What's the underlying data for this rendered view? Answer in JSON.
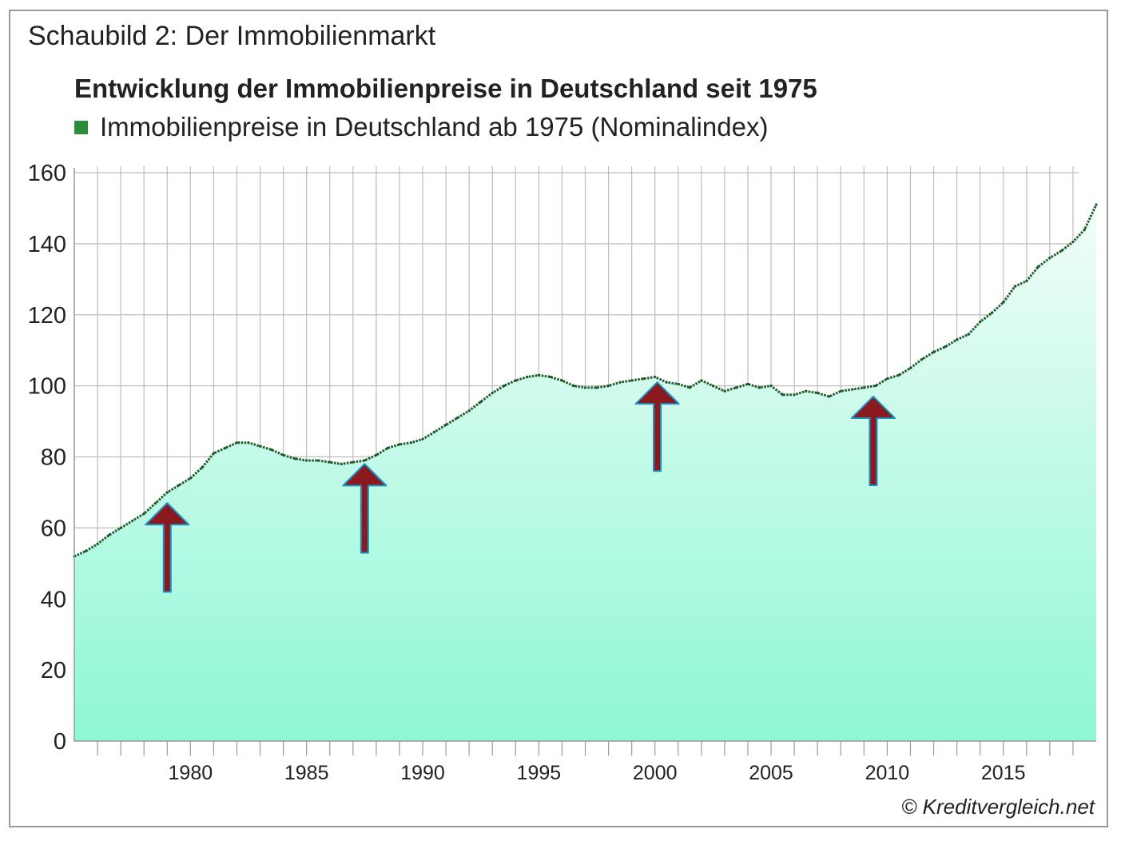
{
  "caption": "Schaubild 2: Der Immobilienmarkt",
  "credit": "© Kreditvergleich.net",
  "colors": {
    "line": "#1f5a2a",
    "legend_swatch": "#2e8b3a",
    "area_top": "#f2fdf8",
    "area_bottom": "#8ef7d6",
    "arrow_fill": "#8b1a1e",
    "arrow_stroke": "#1c8fc0",
    "grid": "#bdbdbd"
  },
  "chart_data": {
    "type": "area",
    "title": "Entwicklung der Immobilienpreise in Deutschland seit 1975",
    "xlabel": "",
    "ylabel": "",
    "ylim": [
      0,
      160
    ],
    "xlim": [
      1975.0,
      2019.0
    ],
    "grid": true,
    "legend_position": "top-left",
    "y_ticks": [
      0,
      20,
      40,
      60,
      80,
      100,
      120,
      140,
      160
    ],
    "x_ticks": [
      1980,
      1985,
      1990,
      1995,
      2000,
      2005,
      2010,
      2015
    ],
    "series": [
      {
        "name": "Immobilienpreise in Deutschland ab 1975 (Nominalindex)",
        "x": [
          1975.0,
          1975.5,
          1976.0,
          1976.5,
          1977.0,
          1977.5,
          1978.0,
          1978.5,
          1979.0,
          1979.5,
          1980.0,
          1980.5,
          1981.0,
          1981.5,
          1982.0,
          1982.5,
          1983.0,
          1983.5,
          1984.0,
          1984.5,
          1985.0,
          1985.5,
          1986.0,
          1986.5,
          1987.0,
          1987.5,
          1988.0,
          1988.5,
          1989.0,
          1989.5,
          1990.0,
          1990.5,
          1991.0,
          1991.5,
          1992.0,
          1992.5,
          1993.0,
          1993.5,
          1994.0,
          1994.5,
          1995.0,
          1995.5,
          1996.0,
          1996.5,
          1997.0,
          1997.5,
          1998.0,
          1998.5,
          1999.0,
          1999.5,
          2000.0,
          2000.5,
          2001.0,
          2001.5,
          2002.0,
          2002.5,
          2003.0,
          2003.5,
          2004.0,
          2004.5,
          2005.0,
          2005.5,
          2006.0,
          2006.5,
          2007.0,
          2007.5,
          2008.0,
          2008.5,
          2009.0,
          2009.5,
          2010.0,
          2010.5,
          2011.0,
          2011.5,
          2012.0,
          2012.5,
          2013.0,
          2013.5,
          2014.0,
          2014.5,
          2015.0,
          2015.5,
          2016.0,
          2016.5,
          2017.0,
          2017.5,
          2018.0,
          2018.5,
          2019.0
        ],
        "values": [
          52,
          53.5,
          55.5,
          58,
          60,
          62,
          64,
          67,
          70,
          72,
          74,
          77,
          81,
          82.5,
          84,
          84,
          83,
          82,
          80.5,
          79.5,
          79,
          79,
          78.5,
          78,
          78.5,
          79,
          80.5,
          82.5,
          83.5,
          84,
          85,
          87,
          89,
          91,
          93,
          95.5,
          98,
          100,
          101.5,
          102.5,
          103,
          102.5,
          101.5,
          100,
          99.5,
          99.5,
          100,
          101,
          101.5,
          102,
          102.5,
          101,
          100.5,
          99.5,
          101.5,
          100,
          98.5,
          99.5,
          100.5,
          99.5,
          100,
          97.5,
          97.5,
          98.5,
          98,
          97,
          98.5,
          99,
          99.5,
          100,
          102,
          103,
          105,
          107.5,
          109.5,
          111,
          113,
          114.5,
          118,
          120.5,
          123.5,
          128,
          129.5,
          133.5,
          136,
          138,
          140.5,
          144,
          151
        ]
      }
    ],
    "annotations": [
      {
        "type": "up-arrow",
        "x": 1979.0,
        "from_y": 42,
        "to_y": 67
      },
      {
        "type": "up-arrow",
        "x": 1987.5,
        "from_y": 53,
        "to_y": 78
      },
      {
        "type": "up-arrow",
        "x": 2000.1,
        "from_y": 76,
        "to_y": 101
      },
      {
        "type": "up-arrow",
        "x": 2009.4,
        "from_y": 72,
        "to_y": 97
      }
    ]
  }
}
